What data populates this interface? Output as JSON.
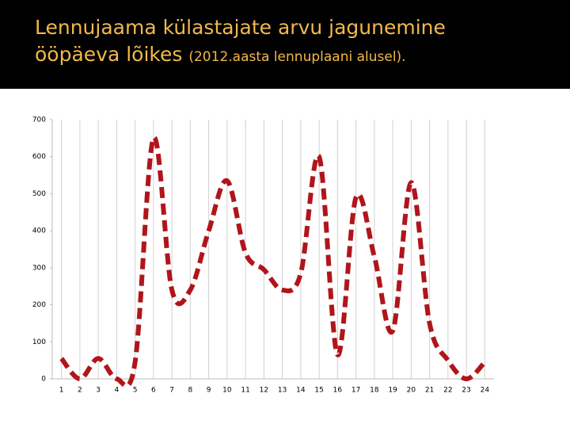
{
  "chart_data": {
    "type": "line",
    "title": "Lennujaama külastajate arvu jagunemine ööpäeva lõikes",
    "subtitle": "(2012.aasta lennuplaani alusel).",
    "categories": [
      "1",
      "2",
      "3",
      "4",
      "5",
      "6",
      "7",
      "8",
      "9",
      "10",
      "11",
      "12",
      "13",
      "14",
      "15",
      "16",
      "17",
      "18",
      "19",
      "20",
      "21",
      "22",
      "23",
      "24"
    ],
    "series": [
      {
        "color": "#b0151b",
        "values": [
          55,
          0,
          55,
          0,
          45,
          650,
          240,
          240,
          400,
          535,
          340,
          295,
          240,
          285,
          600,
          65,
          490,
          330,
          130,
          530,
          150,
          50,
          0,
          45
        ]
      }
    ],
    "ylim": [
      0,
      700
    ],
    "yticks": [
      0,
      100,
      200,
      300,
      400,
      500,
      600,
      700
    ],
    "grid": "x"
  }
}
